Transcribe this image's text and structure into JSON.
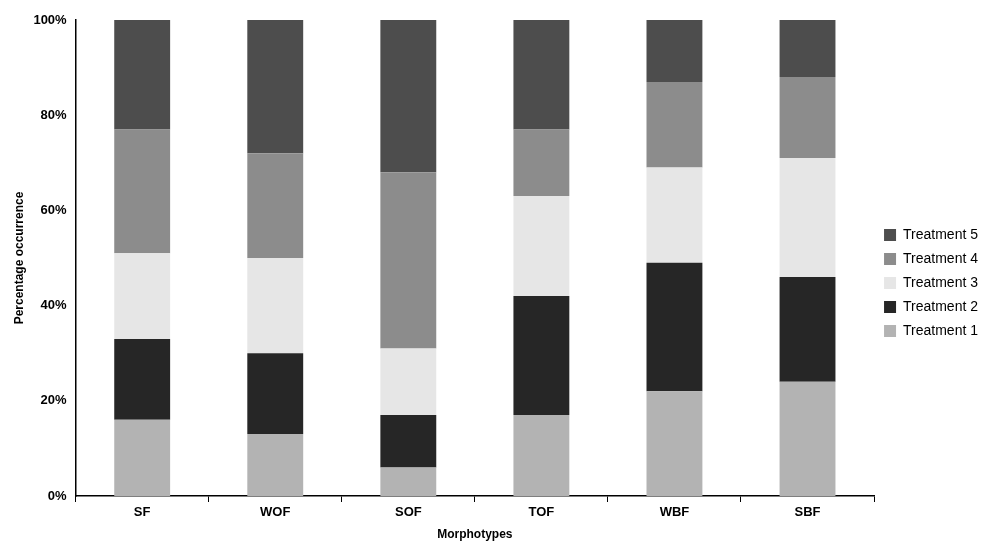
{
  "chart_data": {
    "type": "bar",
    "stacked": true,
    "xlabel": "Morphotypes",
    "ylabel": "Percentage occurrence",
    "categories": [
      "SF",
      "WOF",
      "SOF",
      "TOF",
      "WBF",
      "SBF"
    ],
    "series": [
      {
        "name": "Treatment 1",
        "color": "#b3b3b3",
        "values": [
          16,
          13,
          6,
          17,
          22,
          24
        ]
      },
      {
        "name": "Treatment 2",
        "color": "#262626",
        "values": [
          17,
          17,
          11,
          25,
          27,
          22
        ]
      },
      {
        "name": "Treatment 3",
        "color": "#e6e6e6",
        "values": [
          18,
          20,
          14,
          21,
          20,
          25
        ]
      },
      {
        "name": "Treatment 4",
        "color": "#8c8c8c",
        "values": [
          26,
          22,
          37,
          14,
          18,
          17
        ]
      },
      {
        "name": "Treatment 5",
        "color": "#4d4d4d",
        "values": [
          23,
          28,
          32,
          23,
          13,
          12
        ]
      }
    ],
    "ylim": [
      0,
      100
    ],
    "yticks": [
      {
        "value": 0,
        "label": "0%"
      },
      {
        "value": 20,
        "label": "20%"
      },
      {
        "value": 40,
        "label": "40%"
      },
      {
        "value": 60,
        "label": "60%"
      },
      {
        "value": 80,
        "label": "80%"
      },
      {
        "value": 100,
        "label": "100%"
      }
    ],
    "grid": false,
    "legend": "right"
  }
}
